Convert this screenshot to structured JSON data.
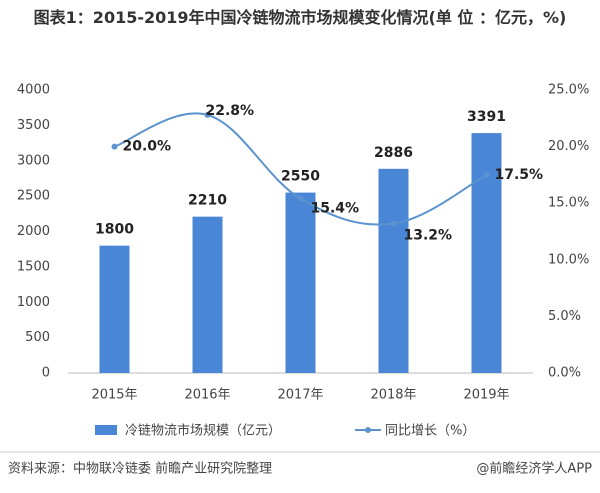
{
  "chart_data": {
    "type": "bar-line",
    "title": "图表1：2015-2019年中国冷链物流市场规模变化情况(单 位 ：亿元，%)",
    "categories": [
      "2015年",
      "2016年",
      "2017年",
      "2018年",
      "2019年"
    ],
    "series": [
      {
        "name": "冷链物流市场规模（亿元）",
        "type": "bar",
        "color": "#4a86d6",
        "values": [
          1800,
          2210,
          2550,
          2886,
          3391
        ]
      },
      {
        "name": "同比增长（%）",
        "type": "line",
        "axis": "y2",
        "color": "#5b93cf",
        "values": [
          20.0,
          22.8,
          15.4,
          13.2,
          17.5
        ],
        "value_labels": [
          "20.0%",
          "22.8%",
          "15.4%",
          "13.2%",
          "17.5%"
        ]
      }
    ],
    "ylim": [
      0,
      4000
    ],
    "yticks": [
      0,
      500,
      1000,
      1500,
      2000,
      2500,
      3000,
      3500,
      4000
    ],
    "y2lim": [
      0,
      25
    ],
    "y2ticks": [
      {
        "value": 0,
        "label": "0.0%"
      },
      {
        "value": 5,
        "label": "5.0%"
      },
      {
        "value": 10,
        "label": "10.0%"
      },
      {
        "value": 15,
        "label": "15.0%"
      },
      {
        "value": 20,
        "label": "20.0%"
      },
      {
        "value": 25,
        "label": "25.0%"
      }
    ],
    "legend": "bottom",
    "source": "资料来源：中物联冷链委 前瞻产业研究院整理",
    "credit": "@前瞻经济学人APP"
  }
}
